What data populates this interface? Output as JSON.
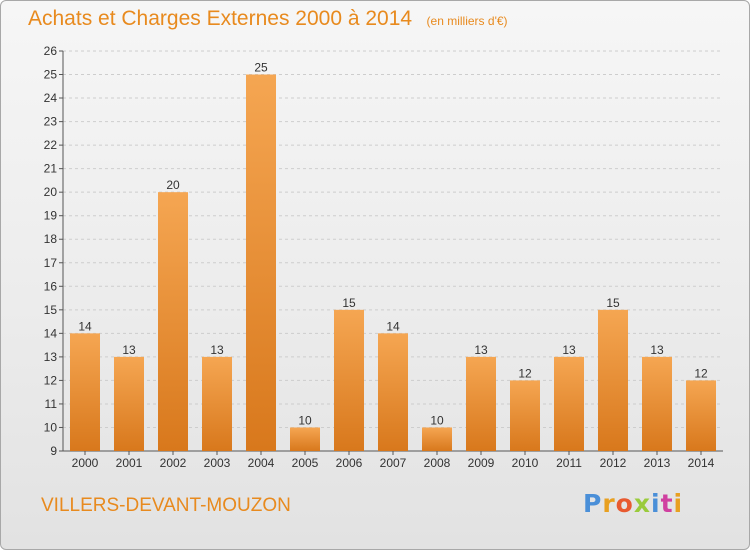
{
  "header": {
    "title": "Achats et Charges Externes 2000 à 2014",
    "unit": "(en milliers d'€)"
  },
  "footer": {
    "town": "VILLERS-DEVANT-MOUZON",
    "logo": "Proxiti"
  },
  "colors": {
    "accent": "#e88a1e",
    "bar_top": "#f5a652",
    "bar_bottom": "#d8781c"
  },
  "chart_data": {
    "type": "bar",
    "title": "Achats et Charges Externes 2000 à 2014",
    "subtitle": "(en milliers d'€)",
    "categories": [
      "2000",
      "2001",
      "2002",
      "2003",
      "2004",
      "2005",
      "2006",
      "2007",
      "2008",
      "2009",
      "2010",
      "2011",
      "2012",
      "2013",
      "2014"
    ],
    "values": [
      14,
      13,
      20,
      13,
      25,
      10,
      15,
      14,
      10,
      13,
      12,
      13,
      15,
      13,
      12
    ],
    "ylim": [
      9,
      26
    ],
    "yticks": [
      9,
      10,
      11,
      12,
      13,
      14,
      15,
      16,
      17,
      18,
      19,
      20,
      21,
      22,
      23,
      24,
      25,
      26
    ],
    "xlabel": "",
    "ylabel": "",
    "grid": true,
    "data_labels": true
  }
}
